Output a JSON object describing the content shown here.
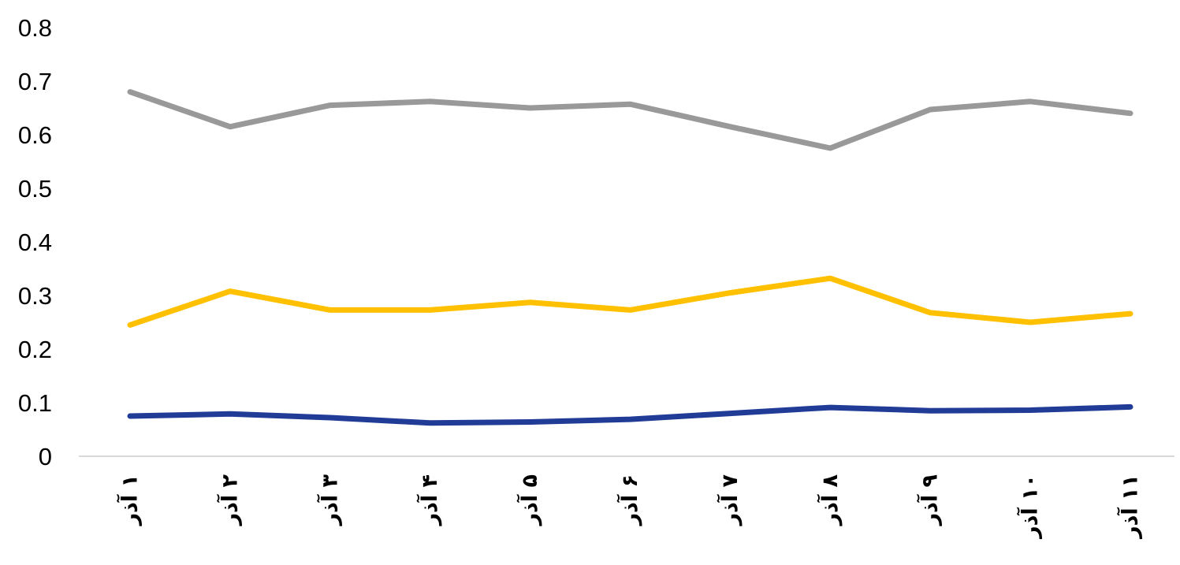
{
  "chart_data": {
    "type": "line",
    "title": "",
    "xlabel": "",
    "ylabel": "",
    "ylim": [
      0,
      0.8
    ],
    "yticks": [
      "0",
      "0.1",
      "0.2",
      "0.3",
      "0.4",
      "0.5",
      "0.6",
      "0.7",
      "0.8"
    ],
    "categories": [
      "۱ آذر",
      "۲ آذر",
      "۳ آذر",
      "۴ آذر",
      "۵ آذر",
      "۶ آذر",
      "۷ آذر",
      "۸ آذر",
      "۹ آذر",
      "۱۰ آذر",
      "۱۱ آذر"
    ],
    "grid": false,
    "legend": "none",
    "series": [
      {
        "color": "#999999",
        "values": [
          0.68,
          0.615,
          0.655,
          0.662,
          0.65,
          0.657,
          0.615,
          0.575,
          0.647,
          0.662,
          0.64
        ]
      },
      {
        "color": "#FFC000",
        "values": [
          0.245,
          0.308,
          0.273,
          0.273,
          0.287,
          0.273,
          0.305,
          0.332,
          0.268,
          0.25,
          0.266
        ]
      },
      {
        "color": "#203C96",
        "values": [
          0.075,
          0.079,
          0.072,
          0.062,
          0.064,
          0.069,
          0.08,
          0.091,
          0.085,
          0.086,
          0.092
        ]
      }
    ]
  }
}
